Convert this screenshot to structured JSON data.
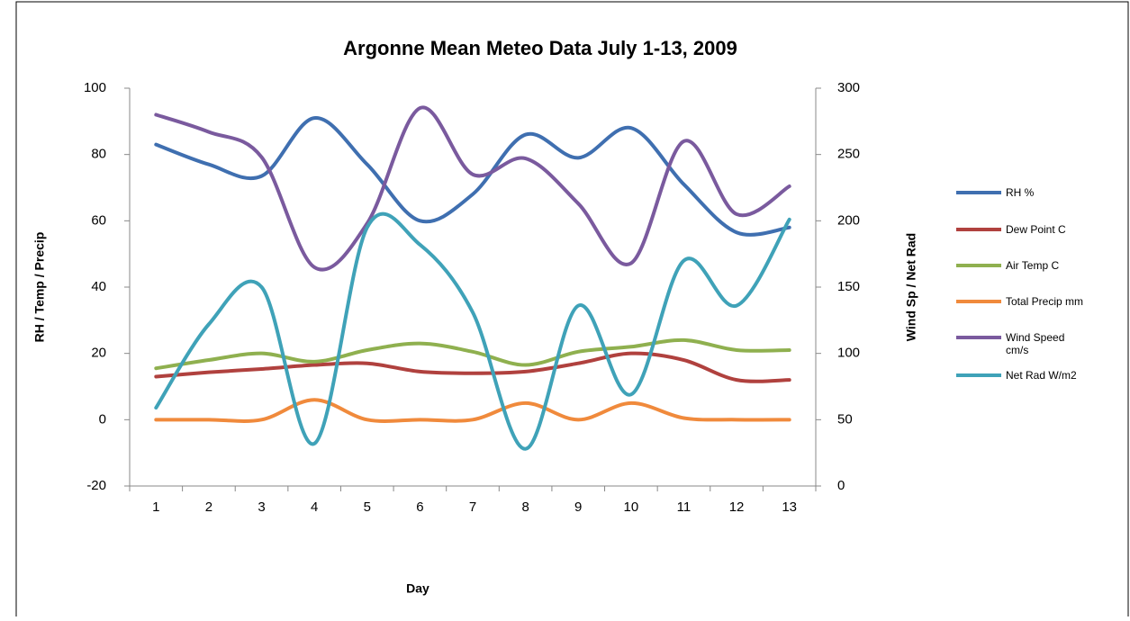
{
  "chart_data": {
    "type": "line",
    "title": "Argonne  Mean Meteo Data July 1-13, 2009",
    "x_label": "Day",
    "y_label": "RH / Temp / Precip",
    "y2_label": "Wind Sp / Net Rad",
    "categories": [
      "1",
      "2",
      "3",
      "4",
      "5",
      "6",
      "7",
      "8",
      "9",
      "10",
      "11",
      "12",
      "13"
    ],
    "ylim": [
      -20,
      100
    ],
    "yticks": [
      -20,
      0,
      20,
      40,
      60,
      80,
      100
    ],
    "y2lim": [
      0,
      300
    ],
    "y2ticks": [
      0,
      50,
      100,
      150,
      200,
      250,
      300
    ],
    "smooth": true,
    "legend": "right",
    "series": [
      {
        "name": "RH %",
        "color": "#3f6fb0",
        "values": [
          83,
          77,
          73.5,
          91,
          77,
          60,
          68,
          86,
          79,
          88,
          71,
          56.5,
          58
        ]
      },
      {
        "name": "Dew Point C",
        "color": "#b0413e",
        "values": [
          13,
          14.3,
          15.3,
          16.5,
          17,
          14.5,
          14,
          14.5,
          17,
          20,
          18,
          12,
          12
        ]
      },
      {
        "name": "Air Temp C",
        "color": "#8fb04f",
        "values": [
          15.5,
          18,
          20,
          17.5,
          21,
          23,
          20.5,
          16.5,
          20.5,
          22,
          24,
          21,
          21
        ]
      },
      {
        "name": "Total Precip mm",
        "color": "#f08a3c",
        "values": [
          0,
          0,
          0,
          6,
          0,
          0,
          0,
          5,
          0,
          5,
          0.5,
          0,
          0
        ]
      },
      {
        "name": "Wind Speed cm/s",
        "color": "#7a5a9e",
        "axis": "y2",
        "values": [
          280,
          267,
          248,
          165,
          198,
          285,
          235,
          247,
          213,
          168,
          260,
          205,
          226
        ]
      },
      {
        "name": "Net Rad W/m2",
        "color": "#3fa2b8",
        "axis": "y2",
        "values": [
          59,
          122,
          150,
          32,
          195,
          182,
          131,
          28,
          136,
          69,
          170,
          136,
          201
        ]
      }
    ]
  }
}
